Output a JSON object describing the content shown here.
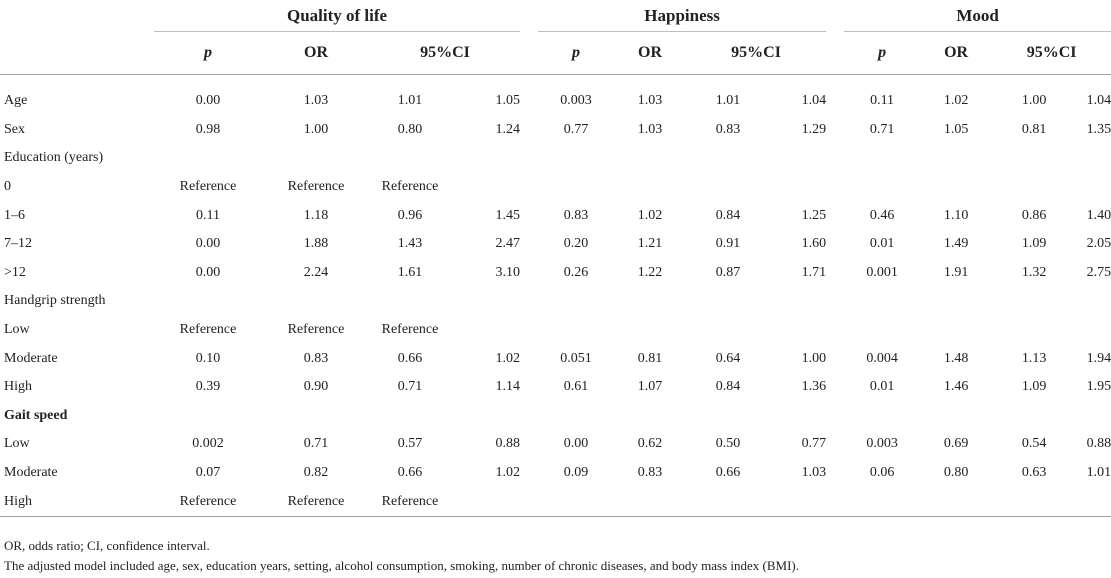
{
  "groups": [
    "Quality of life",
    "Happiness",
    "Mood"
  ],
  "subheaders": {
    "p": "p",
    "or": "OR",
    "ci": "95%CI"
  },
  "rows": [
    {
      "label": "Age",
      "v": [
        "0.00",
        "1.03",
        "1.01",
        "1.05",
        "0.003",
        "1.03",
        "1.01",
        "1.04",
        "0.11",
        "1.02",
        "1.00",
        "1.04"
      ]
    },
    {
      "label": "Sex",
      "v": [
        "0.98",
        "1.00",
        "0.80",
        "1.24",
        "0.77",
        "1.03",
        "0.83",
        "1.29",
        "0.71",
        "1.05",
        "0.81",
        "1.35"
      ]
    },
    {
      "label": "Education (years)",
      "v": [
        "",
        "",
        "",
        "",
        "",
        "",
        "",
        "",
        "",
        "",
        "",
        ""
      ]
    },
    {
      "label": "0",
      "v": [
        "Reference",
        "Reference",
        "Reference",
        "",
        "",
        "",
        "",
        "",
        "",
        "",
        "",
        ""
      ]
    },
    {
      "label": "1–6",
      "v": [
        "0.11",
        "1.18",
        "0.96",
        "1.45",
        "0.83",
        "1.02",
        "0.84",
        "1.25",
        "0.46",
        "1.10",
        "0.86",
        "1.40"
      ]
    },
    {
      "label": "7–12",
      "v": [
        "0.00",
        "1.88",
        "1.43",
        "2.47",
        "0.20",
        "1.21",
        "0.91",
        "1.60",
        "0.01",
        "1.49",
        "1.09",
        "2.05"
      ]
    },
    {
      "label": ">12",
      "v": [
        "0.00",
        "2.24",
        "1.61",
        "3.10",
        "0.26",
        "1.22",
        "0.87",
        "1.71",
        "0.001",
        "1.91",
        "1.32",
        "2.75"
      ]
    },
    {
      "label": "Handgrip strength",
      "v": [
        "",
        "",
        "",
        "",
        "",
        "",
        "",
        "",
        "",
        "",
        "",
        ""
      ]
    },
    {
      "label": "Low",
      "v": [
        "Reference",
        "Reference",
        "Reference",
        "",
        "",
        "",
        "",
        "",
        "",
        "",
        "",
        ""
      ]
    },
    {
      "label": "Moderate",
      "v": [
        "0.10",
        "0.83",
        "0.66",
        "1.02",
        "0.051",
        "0.81",
        "0.64",
        "1.00",
        "0.004",
        "1.48",
        "1.13",
        "1.94"
      ]
    },
    {
      "label": "High",
      "v": [
        "0.39",
        "0.90",
        "0.71",
        "1.14",
        "0.61",
        "1.07",
        "0.84",
        "1.36",
        "0.01",
        "1.46",
        "1.09",
        "1.95"
      ]
    },
    {
      "label": "Gait speed",
      "v": [
        "",
        "",
        "",
        "",
        "",
        "",
        "",
        "",
        "",
        "",
        "",
        ""
      ]
    },
    {
      "label": "Low",
      "v": [
        "0.002",
        "0.71",
        "0.57",
        "0.88",
        "0.00",
        "0.62",
        "0.50",
        "0.77",
        "0.003",
        "0.69",
        "0.54",
        "0.88"
      ]
    },
    {
      "label": "Moderate",
      "v": [
        "0.07",
        "0.82",
        "0.66",
        "1.02",
        "0.09",
        "0.83",
        "0.66",
        "1.03",
        "0.06",
        "0.80",
        "0.63",
        "1.01"
      ]
    },
    {
      "label": "High",
      "v": [
        "Reference",
        "Reference",
        "Reference",
        "",
        "",
        "",
        "",
        "",
        "",
        "",
        "",
        ""
      ]
    }
  ],
  "footnotes": [
    "OR, odds ratio; CI, confidence interval.",
    "The adjusted model included age, sex, education years, setting, alcohol consumption, smoking, number of chronic diseases, and body mass index (BMI)."
  ]
}
